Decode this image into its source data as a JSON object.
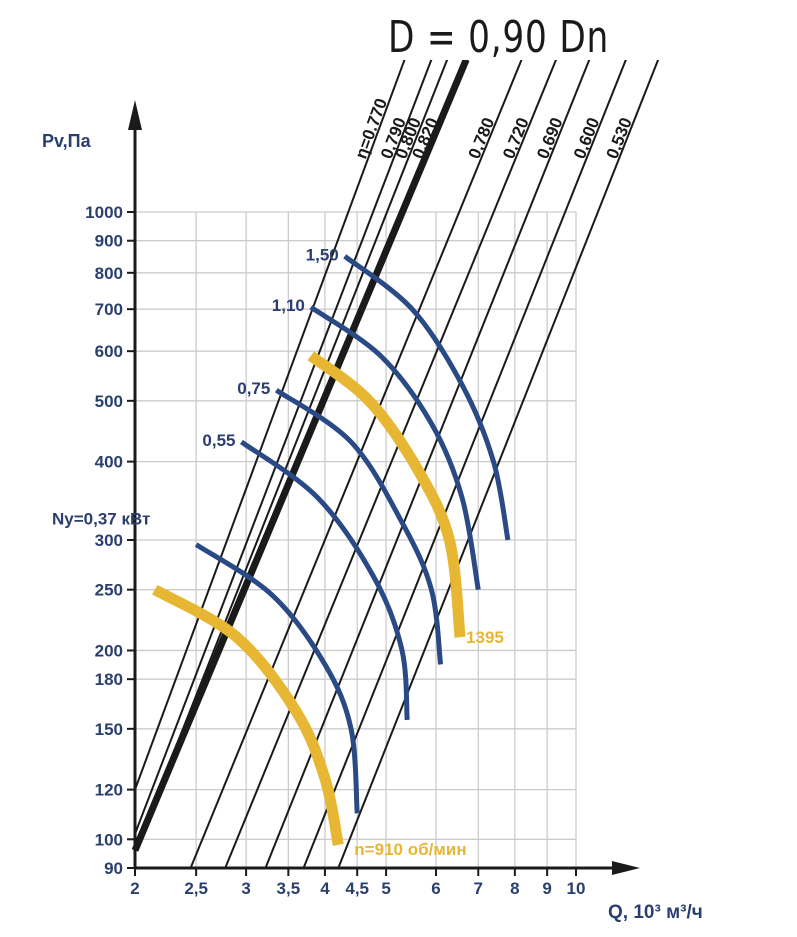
{
  "title": "D = 0,90 Dn",
  "colors": {
    "axis": "#1a1a1a",
    "navy": "#2a4a86",
    "gold": "#e7b733",
    "grid": "#cccccc",
    "label": "#2b3f6e"
  },
  "chart_data": {
    "type": "line",
    "title": "D = 0,90 Dn",
    "xlabel": "Q, 10³ м³/ч",
    "ylabel": "Pv,Па",
    "x_scale": "log",
    "y_scale": "log",
    "xlim": [
      2,
      10
    ],
    "ylim": [
      90,
      1000
    ],
    "grid": true,
    "x_ticks": [
      {
        "v": 2,
        "l": "2"
      },
      {
        "v": 2.5,
        "l": "2,5"
      },
      {
        "v": 3,
        "l": "3"
      },
      {
        "v": 3.5,
        "l": "3,5"
      },
      {
        "v": 4,
        "l": "4"
      },
      {
        "v": 4.5,
        "l": "4,5"
      },
      {
        "v": 5,
        "l": "5"
      },
      {
        "v": 6,
        "l": "6"
      },
      {
        "v": 7,
        "l": "7"
      },
      {
        "v": 8,
        "l": "8"
      },
      {
        "v": 9,
        "l": "9"
      },
      {
        "v": 10,
        "l": "10"
      }
    ],
    "y_ticks": [
      {
        "v": 90,
        "l": "90"
      },
      {
        "v": 100,
        "l": "100"
      },
      {
        "v": 120,
        "l": "120"
      },
      {
        "v": 150,
        "l": "150"
      },
      {
        "v": 180,
        "l": "180"
      },
      {
        "v": 200,
        "l": "200"
      },
      {
        "v": 250,
        "l": "250"
      },
      {
        "v": 300,
        "l": "300"
      },
      {
        "v": 400,
        "l": "400"
      },
      {
        "v": 500,
        "l": "500"
      },
      {
        "v": 600,
        "l": "600"
      },
      {
        "v": 700,
        "l": "700"
      },
      {
        "v": 800,
        "l": "800"
      },
      {
        "v": 900,
        "l": "900"
      },
      {
        "v": 1000,
        "l": "1000"
      }
    ],
    "efficiency_lines": [
      {
        "label": "η=0.770",
        "bold": false,
        "points": [
          [
            2,
            120
          ],
          [
            5.35,
            1750
          ]
        ]
      },
      {
        "label": "0,790",
        "bold": false,
        "points": [
          [
            2,
            102
          ],
          [
            5.9,
            1750
          ]
        ]
      },
      {
        "label": "0,800",
        "bold": false,
        "points": [
          [
            2,
            96
          ],
          [
            6.25,
            1750
          ]
        ]
      },
      {
        "label": "0,820",
        "bold": true,
        "points": [
          [
            2,
            96
          ],
          [
            6.7,
            1750
          ]
        ]
      },
      {
        "label": "0,780",
        "bold": false,
        "points": [
          [
            2.45,
            90
          ],
          [
            8.2,
            1750
          ]
        ]
      },
      {
        "label": "0,720",
        "bold": false,
        "points": [
          [
            2.78,
            90
          ],
          [
            9.3,
            1750
          ]
        ]
      },
      {
        "label": "0,690",
        "bold": false,
        "points": [
          [
            3.22,
            90
          ],
          [
            10.5,
            1750
          ]
        ]
      },
      {
        "label": "0,600",
        "bold": false,
        "points": [
          [
            3.7,
            90
          ],
          [
            12.0,
            1750
          ]
        ]
      },
      {
        "label": "0,530",
        "bold": false,
        "points": [
          [
            4.2,
            90
          ],
          [
            13.5,
            1750
          ]
        ]
      }
    ],
    "series": [
      {
        "name": "n=910 об/мин",
        "rpm_curve": true,
        "points": [
          [
            2.15,
            250
          ],
          [
            2.9,
            210
          ],
          [
            3.6,
            160
          ],
          [
            4.0,
            125
          ],
          [
            4.2,
            98
          ]
        ]
      },
      {
        "name": "Ny=0,37 кВт",
        "points": [
          [
            2.5,
            295
          ],
          [
            3.3,
            245
          ],
          [
            4.0,
            190
          ],
          [
            4.4,
            150
          ],
          [
            4.5,
            110
          ]
        ]
      },
      {
        "name": "0,55",
        "points": [
          [
            2.95,
            430
          ],
          [
            3.9,
            350
          ],
          [
            4.8,
            260
          ],
          [
            5.3,
            200
          ],
          [
            5.4,
            155
          ]
        ]
      },
      {
        "name": "0,75",
        "points": [
          [
            3.35,
            520
          ],
          [
            4.4,
            430
          ],
          [
            5.3,
            320
          ],
          [
            5.9,
            250
          ],
          [
            6.1,
            190
          ]
        ]
      },
      {
        "name": "1395",
        "rpm_curve": true,
        "points": [
          [
            3.8,
            590
          ],
          [
            4.7,
            500
          ],
          [
            5.6,
            390
          ],
          [
            6.3,
            300
          ],
          [
            6.55,
            210
          ]
        ]
      },
      {
        "name": "1,10",
        "points": [
          [
            3.8,
            705
          ],
          [
            4.9,
            590
          ],
          [
            5.9,
            460
          ],
          [
            6.6,
            350
          ],
          [
            7.0,
            250
          ]
        ]
      },
      {
        "name": "1,50",
        "points": [
          [
            4.3,
            850
          ],
          [
            5.5,
            700
          ],
          [
            6.6,
            530
          ],
          [
            7.4,
            400
          ],
          [
            7.8,
            300
          ]
        ]
      }
    ]
  }
}
